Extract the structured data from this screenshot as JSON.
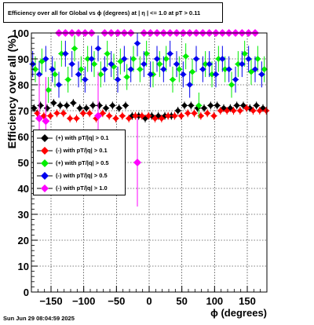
{
  "title": "Efficiency over all for Global vs ϕ (degrees) at | η | <= 1.0 at pT > 0.11",
  "footer": "Sun Jun 29 08:04:59 2025",
  "chart_data": {
    "type": "scatter",
    "xlabel": "ϕ (degrees)",
    "ylabel": "Efficiency over all (%)",
    "xlim": [
      -180,
      180
    ],
    "ylim": [
      0,
      100
    ],
    "x_ticks": [
      -150,
      -100,
      -50,
      0,
      50,
      100,
      150
    ],
    "x_tick_labels": [
      "−150",
      "−100",
      "−50",
      "0",
      "50",
      "100",
      "150"
    ],
    "y_ticks": [
      0,
      10,
      20,
      30,
      40,
      50,
      60,
      70,
      80,
      90,
      100
    ],
    "y_tick_labels": [
      "0",
      "10",
      "20",
      "30",
      "40",
      "50",
      "60",
      "70",
      "80",
      "90",
      "100"
    ],
    "grid": true,
    "legend_position": "left-middle",
    "series": [
      {
        "name": "(+) with pT/|q| > 0.1",
        "color": "#000000",
        "marker": "diamond",
        "x": [
          -176,
          -166,
          -156,
          -146,
          -136,
          -126,
          -116,
          -106,
          -96,
          -86,
          -76,
          -66,
          -56,
          -46,
          -36,
          -26,
          -16,
          -6,
          4,
          14,
          24,
          34,
          44,
          54,
          64,
          74,
          84,
          94,
          104,
          114,
          124,
          134,
          144,
          154,
          164,
          174
        ],
        "y": [
          71,
          72,
          71,
          73,
          72,
          72,
          73,
          71,
          71,
          72,
          72,
          71,
          72,
          71,
          72,
          68,
          68,
          67,
          68,
          68,
          68,
          68,
          70,
          72,
          72,
          71,
          71,
          72,
          72,
          71,
          71,
          72,
          72,
          71,
          72,
          71
        ]
      },
      {
        "name": "(-) with pT/|q| > 0.1",
        "color": "#ff0000",
        "marker": "diamond",
        "x": [
          -171,
          -161,
          -151,
          -141,
          -131,
          -121,
          -111,
          -101,
          -91,
          -81,
          -71,
          -61,
          -51,
          -41,
          -31,
          -21,
          -11,
          -1,
          9,
          19,
          29,
          39,
          49,
          59,
          69,
          79,
          89,
          99,
          109,
          119,
          129,
          139,
          149,
          159,
          169,
          179
        ],
        "y": [
          69,
          68,
          68,
          69,
          69,
          67,
          67,
          69,
          69,
          67,
          69,
          68,
          67,
          68,
          67,
          68,
          68,
          68,
          67,
          67,
          68,
          68,
          68,
          69,
          69,
          68,
          69,
          68,
          70,
          70,
          70,
          70,
          71,
          70,
          70,
          70
        ]
      },
      {
        "name": "(+) with pT/|q| > 0.5",
        "color": "#00ee00",
        "marker": "diamond",
        "x": [
          -174,
          -164,
          -154,
          -144,
          -134,
          -124,
          -114,
          -104,
          -94,
          -84,
          -74,
          -64,
          -54,
          -44,
          -34,
          -24,
          -14,
          -4,
          6,
          16,
          26,
          36,
          46,
          56,
          66,
          76,
          86,
          96,
          106,
          116,
          126,
          136,
          146,
          156,
          166,
          176
        ],
        "y": [
          86,
          89,
          78,
          84,
          92,
          82,
          94,
          86,
          90,
          88,
          84,
          92,
          87,
          89,
          83,
          90,
          86,
          92,
          84,
          88,
          90,
          82,
          86,
          91,
          85,
          72,
          88,
          84,
          90,
          86,
          80,
          88,
          92,
          85,
          90,
          86
        ]
      },
      {
        "name": "(-) with pT/|q| > 0.5",
        "color": "#0000ee",
        "marker": "diamond",
        "x": [
          -178,
          -168,
          -158,
          -148,
          -138,
          -128,
          -118,
          -108,
          -98,
          -88,
          -78,
          -68,
          -58,
          -48,
          -38,
          -28,
          -18,
          -8,
          2,
          12,
          22,
          32,
          42,
          52,
          62,
          72,
          82,
          92,
          102,
          112,
          122,
          132,
          142,
          152,
          162,
          172
        ],
        "y": [
          88,
          84,
          90,
          86,
          80,
          92,
          88,
          84,
          82,
          90,
          94,
          86,
          88,
          82,
          90,
          86,
          96,
          88,
          84,
          90,
          86,
          92,
          88,
          84,
          80,
          90,
          86,
          88,
          84,
          90,
          86,
          82,
          88,
          90,
          86,
          84
        ]
      },
      {
        "name": "(-) with pT/|q| > 1.0",
        "color": "#ff00ff",
        "marker": "diamond",
        "x": [
          -168,
          -158,
          -138,
          -128,
          -118,
          -108,
          -98,
          -88,
          -78,
          -68,
          -58,
          -48,
          -38,
          -28,
          -18,
          -8,
          2,
          12,
          22,
          32,
          42,
          52,
          62,
          72,
          82,
          92,
          102,
          112,
          122,
          132,
          142,
          152,
          162
        ],
        "y": [
          67,
          66,
          100,
          100,
          100,
          100,
          100,
          100,
          68,
          100,
          100,
          100,
          100,
          100,
          50,
          100,
          100,
          100,
          100,
          100,
          100,
          100,
          100,
          100,
          100,
          100,
          100,
          100,
          100,
          100,
          100,
          100,
          100
        ]
      }
    ]
  }
}
